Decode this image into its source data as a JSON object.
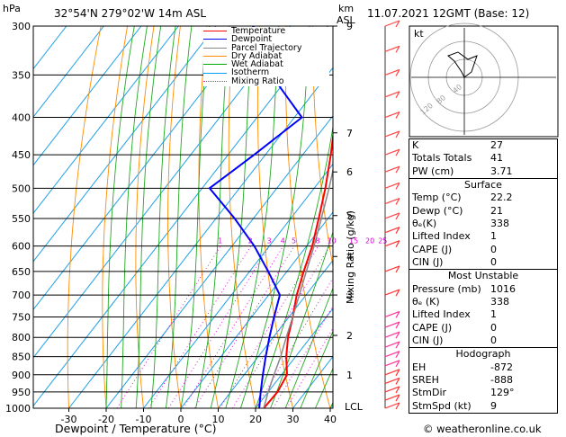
{
  "header": {
    "hpa_label": "hPa",
    "location": "32°54'N  279°02'W  14m  ASL",
    "km_label": "km",
    "asl_label": "ASL",
    "datetime": "11.07.2021  12GMT  (Base: 12)"
  },
  "legend": [
    {
      "label": "Temperature",
      "color": "#ff0000",
      "style": "solid"
    },
    {
      "label": "Dewpoint",
      "color": "#0000ff",
      "style": "solid"
    },
    {
      "label": "Parcel Trajectory",
      "color": "#888888",
      "style": "solid"
    },
    {
      "label": "Dry Adiabat",
      "color": "#ff8c00",
      "style": "solid"
    },
    {
      "label": "Wet Adiabat",
      "color": "#00aa00",
      "style": "solid"
    },
    {
      "label": "Isotherm",
      "color": "#00a0ff",
      "style": "solid"
    },
    {
      "label": "Mixing Ratio",
      "color": "#ff00ff",
      "style": "dotted"
    }
  ],
  "chart_data": {
    "type": "line",
    "title": "",
    "xlabel": "Dewpoint / Temperature (°C)",
    "ylabel": "Mixing Ratio (g/kg)",
    "pressure_ticks": [
      300,
      350,
      400,
      450,
      500,
      550,
      600,
      650,
      700,
      750,
      800,
      850,
      900,
      950,
      1000
    ],
    "pressure_tick_labels": [
      "300",
      "350",
      "400",
      "450",
      "500",
      "550",
      "600",
      "650",
      "700",
      "750",
      "800",
      "850",
      "900",
      "950",
      "1000"
    ],
    "temp_ticks": [
      -30,
      -20,
      -10,
      0,
      10,
      20,
      30,
      40
    ],
    "temp_tick_labels": [
      "-30",
      "-20",
      "-10",
      "0",
      "10",
      "20",
      "30",
      "40"
    ],
    "xlim": [
      -35,
      40
    ],
    "ylim": [
      1000,
      300
    ],
    "skew": "skew-T",
    "km_ticks": [
      {
        "p": 300,
        "label": "9"
      },
      {
        "p": 420,
        "label": "7"
      },
      {
        "p": 475,
        "label": "6"
      },
      {
        "p": 545,
        "label": "5"
      },
      {
        "p": 620,
        "label": "4"
      },
      {
        "p": 700,
        "label": "3"
      },
      {
        "p": 795,
        "label": "2"
      },
      {
        "p": 900,
        "label": "1"
      }
    ],
    "lcl": {
      "p": 1000,
      "label": "LCL"
    },
    "mixing_ratio_labels": [
      "1",
      "2",
      "3",
      "4",
      "5",
      "8",
      "10",
      "15",
      "20",
      "25"
    ],
    "mixing_ratio_values": [
      1,
      2,
      3,
      4,
      5,
      8,
      10,
      15,
      20,
      25
    ],
    "series": [
      {
        "name": "Temperature",
        "color": "#ff0000",
        "p": [
          1000,
          950,
          900,
          850,
          800,
          750,
          700,
          650,
          600,
          550,
          500,
          450,
          400,
          350,
          300
        ],
        "t": [
          22.2,
          22.5,
          21.5,
          17.5,
          14,
          11,
          7.5,
          4.5,
          1.5,
          -2.5,
          -7,
          -12.5,
          -19,
          -27,
          -37
        ]
      },
      {
        "name": "Dewpoint",
        "color": "#0000ff",
        "p": [
          1000,
          950,
          900,
          850,
          800,
          750,
          700,
          650,
          600,
          550,
          500,
          450,
          400,
          350,
          300
        ],
        "t": [
          21,
          18,
          15,
          12,
          9,
          6,
          3,
          -5,
          -14,
          -25,
          -38,
          -33,
          -28,
          -45,
          -60
        ]
      },
      {
        "name": "Parcel Trajectory",
        "color": "#888888",
        "p": [
          1000,
          950,
          900,
          850,
          800,
          750,
          700,
          650,
          600,
          550,
          500,
          450,
          400,
          350,
          300
        ],
        "t": [
          22.2,
          20,
          18,
          16,
          13.5,
          11,
          8.2,
          5.2,
          2,
          -1.8,
          -6,
          -11,
          -17,
          -24.5,
          -34
        ]
      }
    ]
  },
  "hodograph": {
    "label": "kt",
    "ring_labels": [
      "40",
      "80",
      "120"
    ]
  },
  "indices": [
    {
      "label": "K",
      "value": "27"
    },
    {
      "label": "Totals Totals",
      "value": "41"
    },
    {
      "label": "PW (cm)",
      "value": "3.71"
    }
  ],
  "surface": {
    "title": "Surface",
    "rows": [
      {
        "label": "Temp (°C)",
        "value": "22.2"
      },
      {
        "label": "Dewp (°C)",
        "value": "21"
      },
      {
        "label": "θₑ(K)",
        "value": "338"
      },
      {
        "label": "Lifted Index",
        "value": "1"
      },
      {
        "label": "CAPE (J)",
        "value": "0"
      },
      {
        "label": "CIN (J)",
        "value": "0"
      }
    ]
  },
  "most_unstable": {
    "title": "Most Unstable",
    "rows": [
      {
        "label": "Pressure (mb)",
        "value": "1016"
      },
      {
        "label": "θₑ (K)",
        "value": "338"
      },
      {
        "label": "Lifted Index",
        "value": "1"
      },
      {
        "label": "CAPE (J)",
        "value": "0"
      },
      {
        "label": "CIN (J)",
        "value": "0"
      }
    ]
  },
  "hodograph_table": {
    "title": "Hodograph",
    "rows": [
      {
        "label": "EH",
        "value": "-872"
      },
      {
        "label": "SREH",
        "value": "-888"
      },
      {
        "label": "StmDir",
        "value": "129°"
      },
      {
        "label": "StmSpd (kt)",
        "value": "9"
      }
    ]
  },
  "footer": {
    "credit": "© weatheronline.co.uk"
  }
}
